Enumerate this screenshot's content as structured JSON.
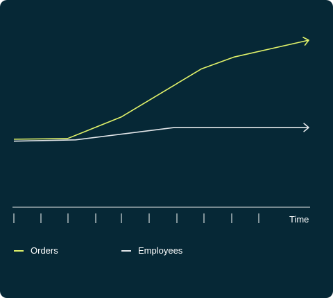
{
  "colors": {
    "background": "#062836",
    "orders": "#E2F36A",
    "employees": "#E4E7EA",
    "axis": "#FFFFFF"
  },
  "chart_data": {
    "type": "line",
    "title": "",
    "xlabel": "Time",
    "ylabel": "",
    "x": [
      0,
      1,
      2,
      3,
      4,
      5,
      6,
      7,
      8,
      9,
      10,
      11
    ],
    "xlim": [
      0,
      11
    ],
    "ylim": [
      0,
      100
    ],
    "grid": false,
    "legend_position": "bottom-left",
    "x_ticks_count": 11,
    "series": [
      {
        "name": "Orders",
        "color": "#E2F36A",
        "x": [
          0,
          2,
          4,
          7,
          8.2,
          11
        ],
        "y": [
          24,
          24.5,
          41,
          78,
          87,
          100
        ]
      },
      {
        "name": "Employees",
        "color": "#E4E7EA",
        "x": [
          0,
          2.3,
          6,
          11
        ],
        "y": [
          22.5,
          23.5,
          33,
          33
        ]
      }
    ]
  },
  "legend": {
    "orders": "Orders",
    "employees": "Employees"
  }
}
